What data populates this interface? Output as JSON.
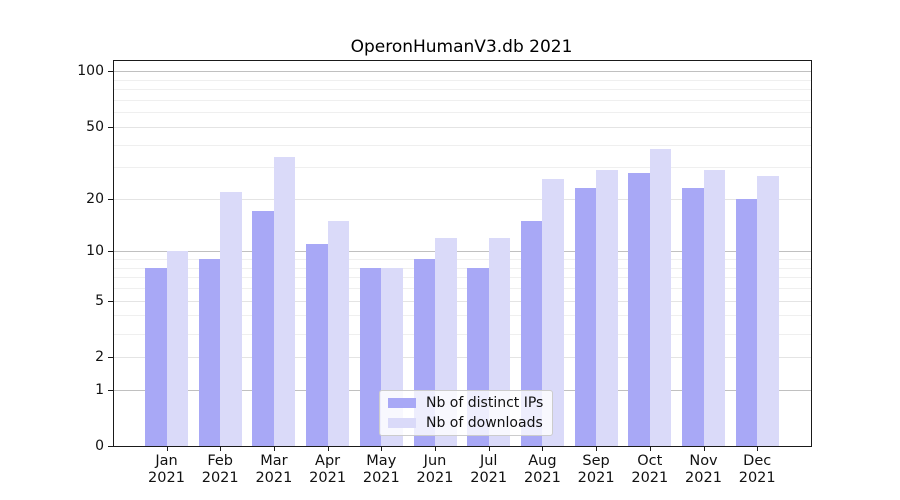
{
  "title": "OperonHumanV3.db 2021",
  "chart_data": {
    "type": "bar",
    "title": "OperonHumanV3.db 2021",
    "months": [
      "Jan",
      "Feb",
      "Mar",
      "Apr",
      "May",
      "Jun",
      "Jul",
      "Aug",
      "Sep",
      "Oct",
      "Nov",
      "Dec"
    ],
    "year": "2021",
    "categories": [
      "Jan 2021",
      "Feb 2021",
      "Mar 2021",
      "Apr 2021",
      "May 2021",
      "Jun 2021",
      "Jul 2021",
      "Aug 2021",
      "Sep 2021",
      "Oct 2021",
      "Nov 2021",
      "Dec 2021"
    ],
    "series": [
      {
        "name": "Nb of distinct IPs",
        "color": "#a8a8f6",
        "values": [
          8,
          9,
          17,
          11,
          8,
          9,
          8,
          15,
          23,
          28,
          23,
          20
        ]
      },
      {
        "name": "Nb of downloads",
        "color": "#dadaf9",
        "values": [
          10,
          22,
          34,
          15,
          8,
          12,
          12,
          26,
          29,
          38,
          29,
          27
        ]
      }
    ],
    "xlabel": "",
    "ylabel": "",
    "yscale": "log1p",
    "ylim": [
      0,
      114
    ],
    "y_ticks": [
      100,
      50,
      20,
      10,
      5,
      2,
      1,
      0
    ],
    "y_gridlines": {
      "major": [
        1,
        10,
        100
      ],
      "labeled_minor": [
        2,
        5,
        20,
        50
      ],
      "minor": [
        3,
        4,
        6,
        7,
        8,
        9,
        30,
        40,
        60,
        70,
        80,
        90
      ]
    },
    "grid": "both",
    "legend_position": "lower center"
  },
  "legend": {
    "items": [
      {
        "label": "Nb of distinct IPs"
      },
      {
        "label": "Nb of downloads"
      }
    ]
  }
}
